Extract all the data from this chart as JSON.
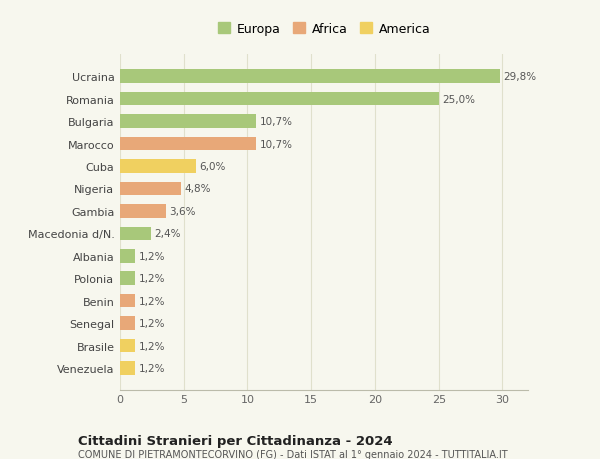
{
  "categories": [
    "Venezuela",
    "Brasile",
    "Senegal",
    "Benin",
    "Polonia",
    "Albania",
    "Macedonia d/N.",
    "Gambia",
    "Nigeria",
    "Cuba",
    "Marocco",
    "Bulgaria",
    "Romania",
    "Ucraina"
  ],
  "values": [
    1.2,
    1.2,
    1.2,
    1.2,
    1.2,
    1.2,
    2.4,
    3.6,
    4.8,
    6.0,
    10.7,
    10.7,
    25.0,
    29.8
  ],
  "labels": [
    "1,2%",
    "1,2%",
    "1,2%",
    "1,2%",
    "1,2%",
    "1,2%",
    "2,4%",
    "3,6%",
    "4,8%",
    "6,0%",
    "10,7%",
    "10,7%",
    "25,0%",
    "29,8%"
  ],
  "continents": [
    "America",
    "America",
    "Africa",
    "Africa",
    "Europa",
    "Europa",
    "Europa",
    "Africa",
    "Africa",
    "America",
    "Africa",
    "Europa",
    "Europa",
    "Europa"
  ],
  "colors": {
    "Europa": "#a8c87a",
    "Africa": "#e8a878",
    "America": "#f0d060"
  },
  "xlim": [
    0,
    32
  ],
  "xticks": [
    0,
    5,
    10,
    15,
    20,
    25,
    30
  ],
  "title": "Cittadini Stranieri per Cittadinanza - 2024",
  "subtitle": "COMUNE DI PIETRAMONTECORVINO (FG) - Dati ISTAT al 1° gennaio 2024 - TUTTITALIA.IT",
  "background_color": "#f7f7ee",
  "grid_color": "#e0e0cc",
  "bar_height": 0.6
}
